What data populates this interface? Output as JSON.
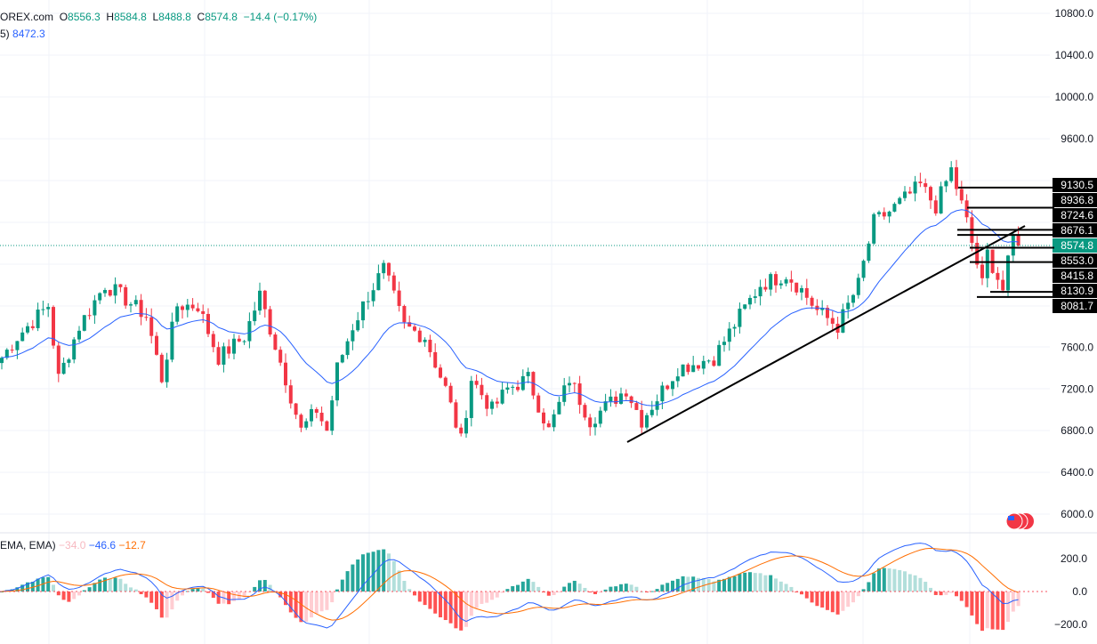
{
  "header": {
    "symbol_tail": "OREX.com",
    "o_label": "O",
    "o": "8556.3",
    "h_label": "H",
    "h": "8584.8",
    "l_label": "L",
    "l": "8488.8",
    "c_label": "C",
    "c": "8574.8",
    "change": "−14.4 (−0.17%)",
    "ma_label": "5)",
    "ma_value": "8472.3"
  },
  "macd_legend": {
    "label": "EMA, EMA)",
    "hist": "−34.0",
    "macd": "−46.6",
    "signal": "−12.7"
  },
  "colors": {
    "up": "#089981",
    "down": "#f23645",
    "ma": "#2962ff",
    "macd": "#2962ff",
    "signal": "#ff6d00",
    "last": "#089981"
  },
  "chart_data": {
    "type": "candlestick",
    "y_axis": {
      "range": [
        6000,
        10800
      ],
      "ticks": [
        "10800.0",
        "10400.0",
        "10000.0",
        "9600.0",
        "7600.0",
        "7200.0",
        "6800.0",
        "6400.0",
        "6000.0"
      ]
    },
    "macd_axis": {
      "ticks": [
        "200.0",
        "0.0",
        "−200.0"
      ]
    },
    "close_path": [
      [
        0,
        7500
      ],
      [
        3,
        7700
      ],
      [
        9,
        8000
      ],
      [
        11,
        7300
      ],
      [
        15,
        7800
      ],
      [
        20,
        8200
      ],
      [
        23,
        8100
      ],
      [
        28,
        7900
      ],
      [
        31,
        7300
      ],
      [
        34,
        8000
      ],
      [
        38,
        8000
      ],
      [
        42,
        7500
      ],
      [
        47,
        7700
      ],
      [
        50,
        8100
      ],
      [
        55,
        7300
      ],
      [
        58,
        6800
      ],
      [
        61,
        7000
      ],
      [
        63,
        6800
      ],
      [
        65,
        7400
      ],
      [
        68,
        7800
      ],
      [
        71,
        8100
      ],
      [
        74,
        8350
      ],
      [
        78,
        7800
      ],
      [
        82,
        7700
      ],
      [
        86,
        7200
      ],
      [
        89,
        6700
      ],
      [
        91,
        7300
      ],
      [
        95,
        7000
      ],
      [
        98,
        7200
      ],
      [
        102,
        7300
      ],
      [
        106,
        6800
      ],
      [
        110,
        7300
      ],
      [
        114,
        6900
      ],
      [
        121,
        7200
      ],
      [
        124,
        6900
      ],
      [
        131,
        7400
      ],
      [
        138,
        7500
      ],
      [
        143,
        7900
      ],
      [
        147,
        8200
      ],
      [
        152,
        8300
      ],
      [
        155,
        8150
      ],
      [
        158,
        7950
      ],
      [
        162,
        7800
      ],
      [
        166,
        8200
      ],
      [
        169,
        8800
      ],
      [
        172,
        8900
      ],
      [
        178,
        9150
      ],
      [
        181,
        8950
      ],
      [
        184,
        9300
      ],
      [
        187,
        8800
      ],
      [
        190,
        8200
      ],
      [
        191,
        8500
      ],
      [
        194,
        8150
      ],
      [
        196,
        8650
      ],
      [
        197,
        8575
      ]
    ],
    "price_labels": [
      "9130.5",
      "8936.8",
      "8724.6",
      "8676.1",
      "8574.8",
      "8553.0",
      "8415.8",
      "8130.9",
      "8081.7"
    ],
    "last_price": "8574.8"
  }
}
